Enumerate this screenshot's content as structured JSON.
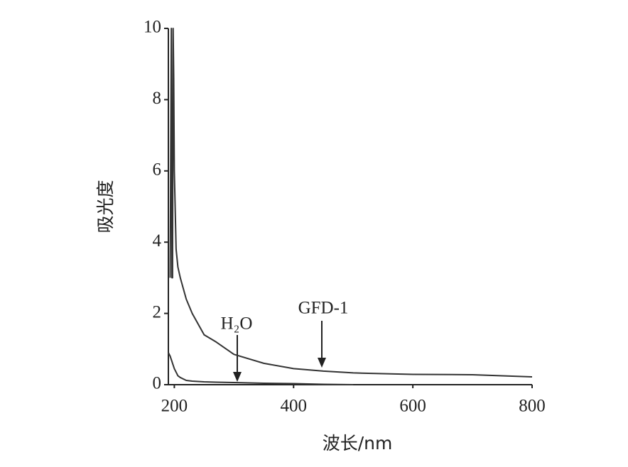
{
  "chart_data": {
    "type": "line",
    "y_label": "吸光度",
    "x_label": "波长/nm",
    "x": [
      190,
      193,
      195,
      196,
      197,
      198,
      199,
      200,
      203,
      206,
      210,
      220,
      230,
      250,
      270,
      300,
      350,
      400,
      450,
      500,
      600,
      700,
      800
    ],
    "series": [
      {
        "name": "GFD-1",
        "color": "#333333",
        "values": [
          null,
          3.0,
          10,
          3.0,
          3.0,
          10,
          8.6,
          6,
          3.8,
          3.3,
          3.0,
          2.4,
          2.0,
          1.4,
          1.2,
          0.85,
          0.6,
          0.45,
          0.38,
          0.33,
          0.29,
          0.28,
          0.22
        ]
      },
      {
        "name": "H₂O",
        "color": "#333333",
        "values": [
          0.9,
          0.8,
          0.7,
          0.65,
          0.6,
          0.55,
          0.5,
          0.45,
          0.35,
          0.25,
          0.2,
          0.12,
          0.1,
          0.08,
          0.07,
          0.06,
          0.04,
          0.03,
          0.01,
          0,
          null,
          null,
          null
        ]
      }
    ],
    "xlim": [
      190,
      800
    ],
    "xticks": [
      200,
      400,
      600,
      800
    ],
    "ylim": [
      0,
      10
    ],
    "yticks": [
      0,
      2,
      4,
      6,
      8,
      10
    ],
    "grid": false
  }
}
